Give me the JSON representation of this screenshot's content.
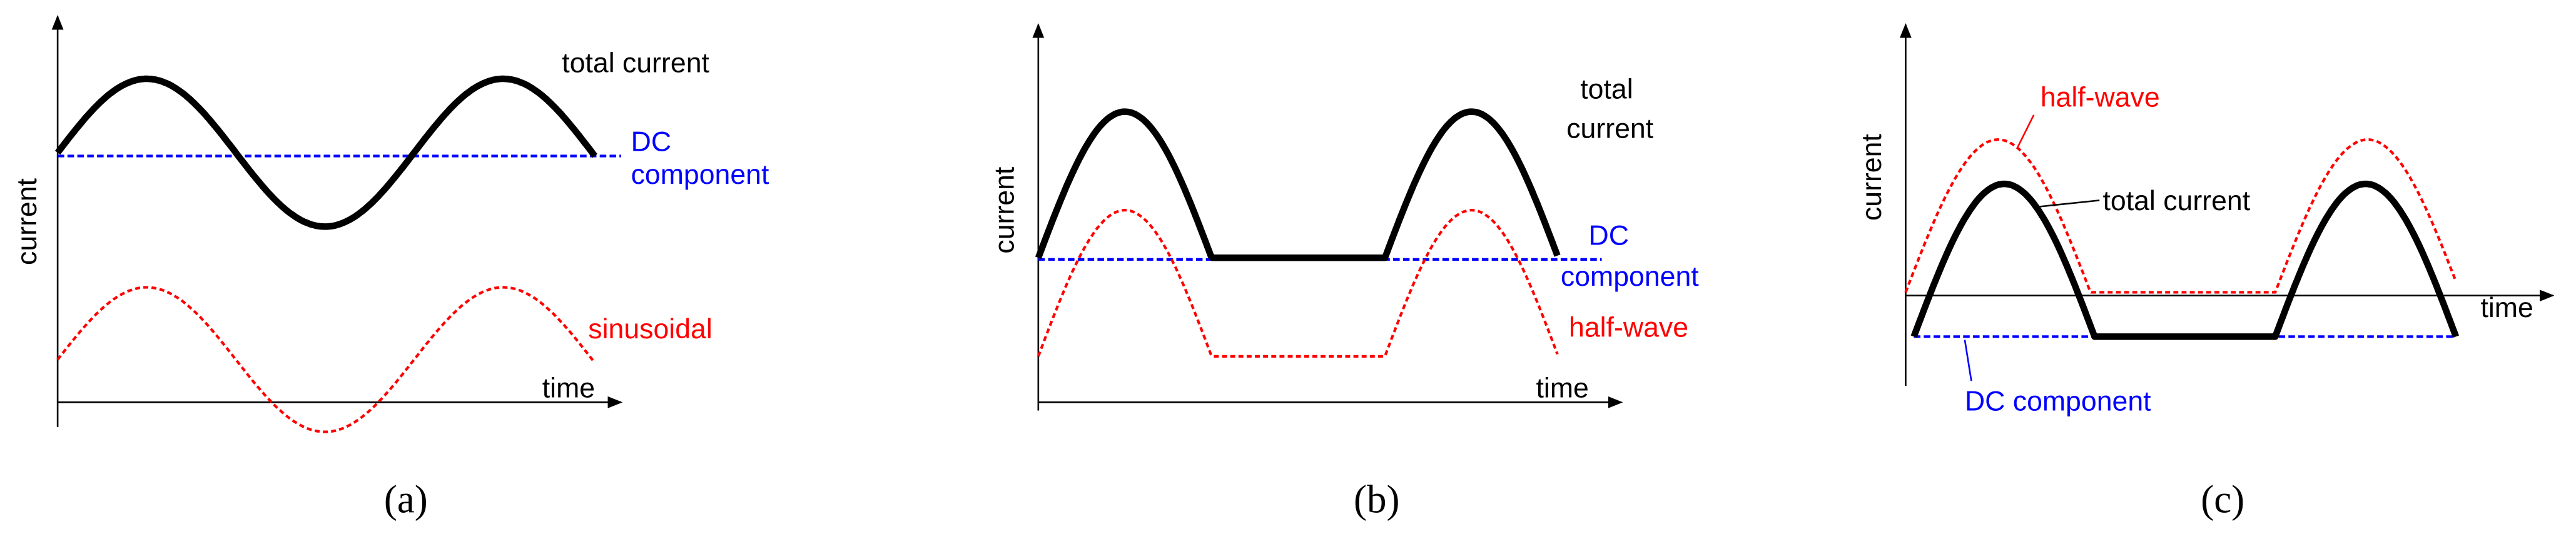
{
  "panels": [
    {
      "y_label": "current",
      "x_label": "time",
      "annotations": [
        "total current",
        "DC",
        "component",
        "sinusoidal"
      ],
      "caption": "(a)"
    },
    {
      "y_label": "current",
      "x_label": "time",
      "annotations": [
        "total",
        "current",
        "DC",
        "component",
        "half-wave"
      ],
      "caption": "(b)"
    },
    {
      "y_label": "current",
      "x_label": "time",
      "annotations": [
        "half-wave",
        "total current",
        "DC component"
      ],
      "caption": "(c)"
    }
  ]
}
